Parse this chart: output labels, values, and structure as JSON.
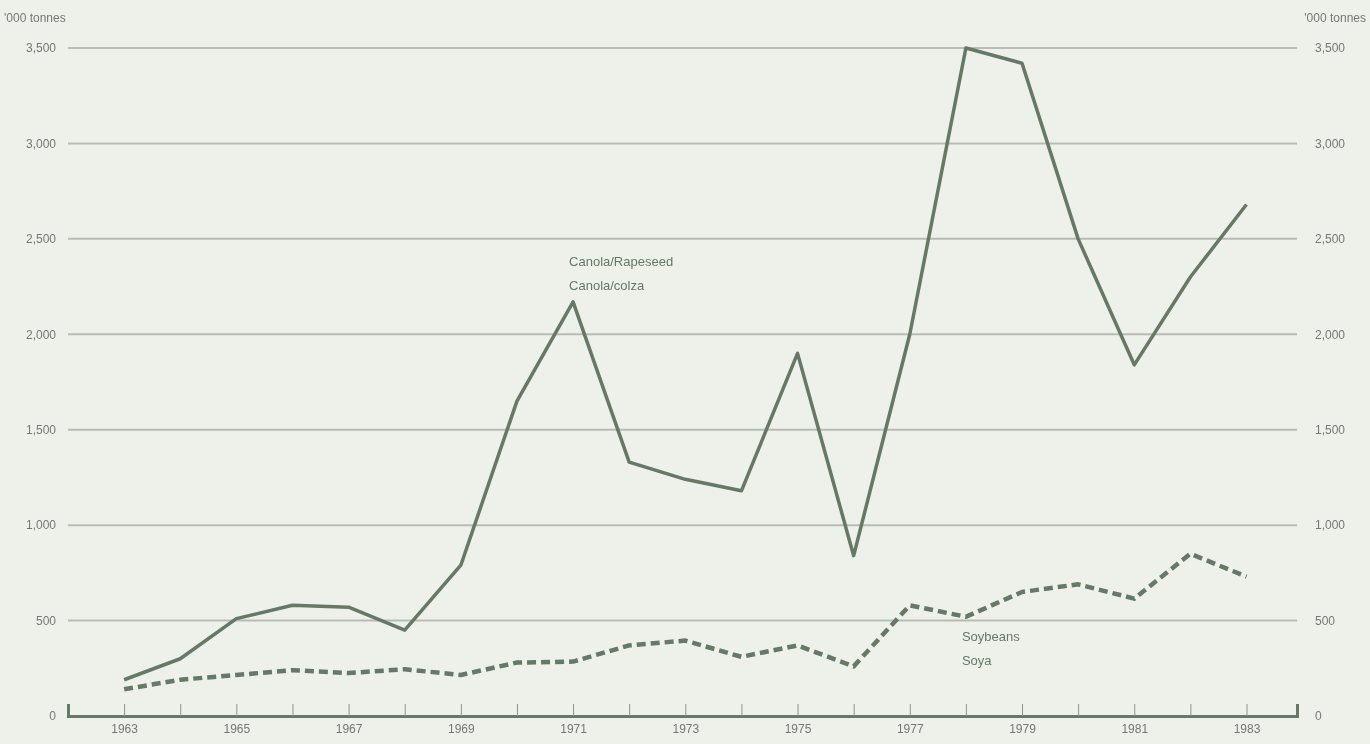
{
  "chart_data": {
    "type": "line",
    "ylabel": "'000 tonnes",
    "y2label": "'000 tonnes",
    "x": [
      1963,
      1964,
      1965,
      1966,
      1967,
      1968,
      1969,
      1970,
      1971,
      1972,
      1973,
      1974,
      1975,
      1976,
      1977,
      1978,
      1979,
      1980,
      1981,
      1982,
      1983
    ],
    "xlim": [
      1962,
      1983.9
    ],
    "xticks": [
      1963,
      {
        "value": 1964,
        "label": null
      },
      1965,
      {
        "value": 1966,
        "label": null
      },
      1967,
      {
        "value": 1968,
        "label": null
      },
      1969,
      {
        "value": 1970,
        "label": null
      },
      1971,
      {
        "value": 1972,
        "label": null
      },
      1973,
      {
        "value": 1974,
        "label": null
      },
      1975,
      {
        "value": 1976,
        "label": null
      },
      1977,
      {
        "value": 1978,
        "label": null
      },
      1979,
      {
        "value": 1980,
        "label": null
      },
      1981,
      {
        "value": 1982,
        "label": null
      },
      1983
    ],
    "ylim": [
      0,
      3500
    ],
    "yticks": [
      0,
      {
        "value": 500,
        "label": "500"
      },
      {
        "value": 1000,
        "label": "1,000"
      },
      {
        "value": 1500,
        "label": "1,500"
      },
      {
        "value": 2000,
        "label": "2,000"
      },
      {
        "value": 2500,
        "label": "2,500"
      },
      {
        "value": 3000,
        "label": "3,000"
      },
      {
        "value": 3500,
        "label": "3,500"
      }
    ],
    "y2lim": [
      0,
      3500
    ],
    "y2ticks": [
      0,
      {
        "value": 500,
        "label": "500"
      },
      {
        "value": 1000,
        "label": "1,000"
      },
      {
        "value": 1500,
        "label": "1,500"
      },
      {
        "value": 2000,
        "label": "2,000"
      },
      {
        "value": 2500,
        "label": "2,500"
      },
      {
        "value": 3000,
        "label": "3,000"
      },
      {
        "value": 3500,
        "label": "3,500"
      }
    ],
    "grid": "y",
    "marker": "none",
    "series": [
      {
        "name": "Canola/Rapeseed\nCanola/colza",
        "color": "#667866",
        "line_style": "solid",
        "values": [
          190,
          300,
          510,
          580,
          570,
          450,
          790,
          1650,
          2170,
          1330,
          1240,
          1180,
          1900,
          840,
          2000,
          3500,
          3420,
          2500,
          1840,
          2300,
          2680
        ]
      },
      {
        "name": "Soybeans\nSoya",
        "color": "#667866",
        "line_style": "dashed",
        "values": [
          140,
          190,
          215,
          240,
          225,
          245,
          215,
          280,
          285,
          370,
          395,
          310,
          370,
          260,
          580,
          520,
          650,
          690,
          615,
          850,
          730
        ]
      }
    ]
  }
}
